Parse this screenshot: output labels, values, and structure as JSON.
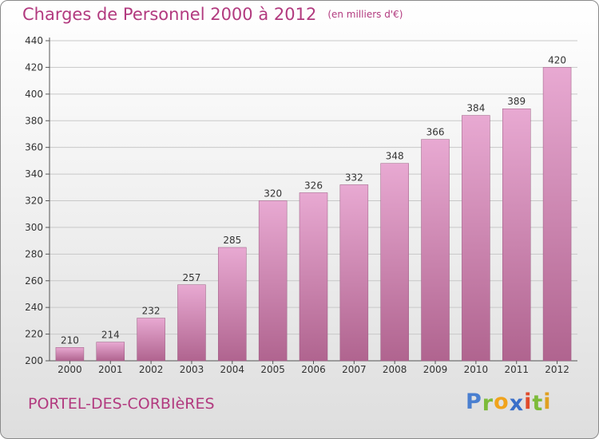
{
  "title": "Charges de Personnel 2000 à 2012",
  "subtitle": "(en milliers d'€)",
  "commune": "PORTEL-DES-CORBIèRES",
  "logo": {
    "letters": [
      "P",
      "r",
      "o",
      "x",
      "i",
      "t",
      "i"
    ],
    "colors": [
      "#4a7fd0",
      "#7dbb3a",
      "#f0a31c",
      "#3a6fc9",
      "#e04a2a",
      "#7dbb3a",
      "#e0a020"
    ]
  },
  "colors": {
    "bar_top": "#e8a9d2",
    "bar_bottom": "#b0648f",
    "text_accent": "#b23a7f"
  },
  "chart_data": {
    "type": "bar",
    "categories": [
      "2000",
      "2001",
      "2002",
      "2003",
      "2004",
      "2005",
      "2006",
      "2007",
      "2008",
      "2009",
      "2010",
      "2011",
      "2012"
    ],
    "values": [
      210,
      214,
      232,
      257,
      285,
      320,
      326,
      332,
      348,
      366,
      384,
      389,
      420
    ],
    "title": "Charges de Personnel 2000 à 2012",
    "subtitle": "(en milliers d'€)",
    "ylim": [
      200,
      440
    ],
    "yticks": [
      200,
      220,
      240,
      260,
      280,
      300,
      320,
      340,
      360,
      380,
      400,
      420,
      440
    ],
    "grid": true
  }
}
